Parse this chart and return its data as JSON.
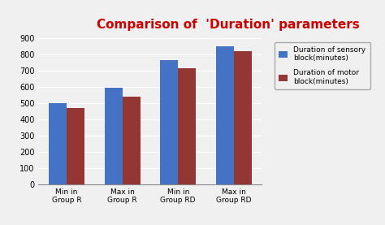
{
  "title": "Comparison of  'Duration' parameters",
  "categories": [
    "Min in\nGroup R",
    "Max in\nGroup R",
    "Min in\nGroup RD",
    "Max in\nGroup RD"
  ],
  "sensory": [
    500,
    595,
    765,
    850
  ],
  "motor": [
    470,
    540,
    718,
    820
  ],
  "sensory_color": "#4472C4",
  "motor_color": "#943634",
  "legend_sensory": "Duration of sensory\nblock(minutes)",
  "legend_motor": "Duration of motor\nblock(minutes)",
  "ylim": [
    0,
    900
  ],
  "yticks": [
    0,
    100,
    200,
    300,
    400,
    500,
    600,
    700,
    800,
    900
  ],
  "title_color": "#CC0000",
  "title_fontsize": 11,
  "bg_color": "#F0F0F0",
  "bar_width": 0.32
}
